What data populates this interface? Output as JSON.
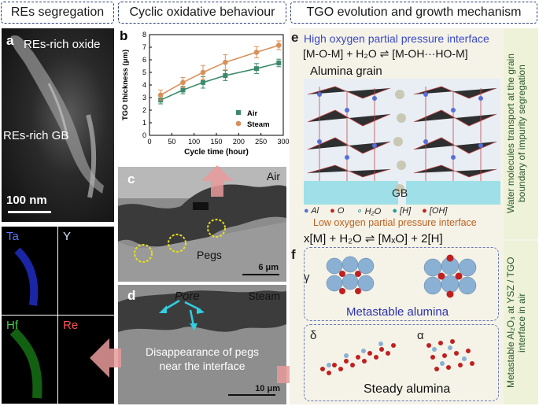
{
  "headers": {
    "segregation": "REs  segregation",
    "cyclic": "Cyclic oxidative behaviour",
    "tgo": "TGO evolution and growth mechanism"
  },
  "panel_a": {
    "letter": "a",
    "top_label": "REs-rich oxide",
    "mid_label": "REs-rich GB",
    "scale_bar": "100 nm",
    "maps": [
      {
        "label": "Ta",
        "color": "#4a64ff"
      },
      {
        "label": "Y",
        "color": "#c8d8ff"
      },
      {
        "label": "Hf",
        "color": "#30c030"
      },
      {
        "label": "Re",
        "color": "#e04040"
      }
    ]
  },
  "panel_b": {
    "letter": "b"
  },
  "chart_data": {
    "type": "line",
    "title": "",
    "xlabel": "Cycle time (hour)",
    "ylabel": "TGO thickness (μm)",
    "xlim": [
      0,
      300
    ],
    "ylim": [
      0,
      8
    ],
    "xticks": [
      0,
      50,
      100,
      150,
      200,
      250,
      300
    ],
    "yticks": [
      0,
      1,
      2,
      3,
      4,
      5,
      6,
      7,
      8
    ],
    "x": [
      25,
      75,
      120,
      170,
      240,
      290
    ],
    "series": [
      {
        "name": "Air",
        "color": "#3c8a6a",
        "marker": "square",
        "values": [
          2.8,
          3.6,
          4.2,
          4.75,
          5.3,
          5.75
        ],
        "errors": [
          0.3,
          0.3,
          0.45,
          0.4,
          0.4,
          0.3
        ]
      },
      {
        "name": "Steam",
        "color": "#d8905a",
        "marker": "circle",
        "values": [
          3.2,
          4.2,
          5.0,
          5.8,
          6.6,
          7.15
        ],
        "errors": [
          0.4,
          0.4,
          0.55,
          0.6,
          0.45,
          0.35
        ]
      }
    ],
    "legend_position": "lower-right",
    "grid": false
  },
  "panel_c": {
    "letter": "c",
    "condition": "Air",
    "pegs_label": "Pegs",
    "scale_bar": "6 μm"
  },
  "panel_d": {
    "letter": "d",
    "condition": "Steam",
    "pore_label": "Pore",
    "caption_line1": "Disappearance of pegs",
    "caption_line2": "near the interface",
    "scale_bar": "10 μm"
  },
  "panel_e": {
    "letter": "e",
    "title": "High oxygen partial pressure interface",
    "reaction_top": "[M-O-M] + H₂O ⇌ [M-OH···HO-M]",
    "grain_label": "Alumina grain",
    "gb_label": "GB",
    "legend": [
      "Al",
      "O",
      "H₂O",
      "[H]",
      "[OH]"
    ],
    "low_title": "Low oxygen partial pressure interface",
    "reaction_bottom": "x[M] + H₂O ⇌ [MₓO] + 2[H]"
  },
  "panel_f": {
    "letter": "f",
    "gamma": "γ",
    "metastable": "Metastable alumina",
    "delta": "δ",
    "alpha": "α",
    "steady": "Steady alumina"
  },
  "side_notes": {
    "upper_line1": "Water molecules transport at the grain",
    "upper_line2": "boundary of impurity segregation",
    "lower_line1": "Metastable Al₂O₃ at YSZ / TGO",
    "lower_line2": "interface in air"
  }
}
